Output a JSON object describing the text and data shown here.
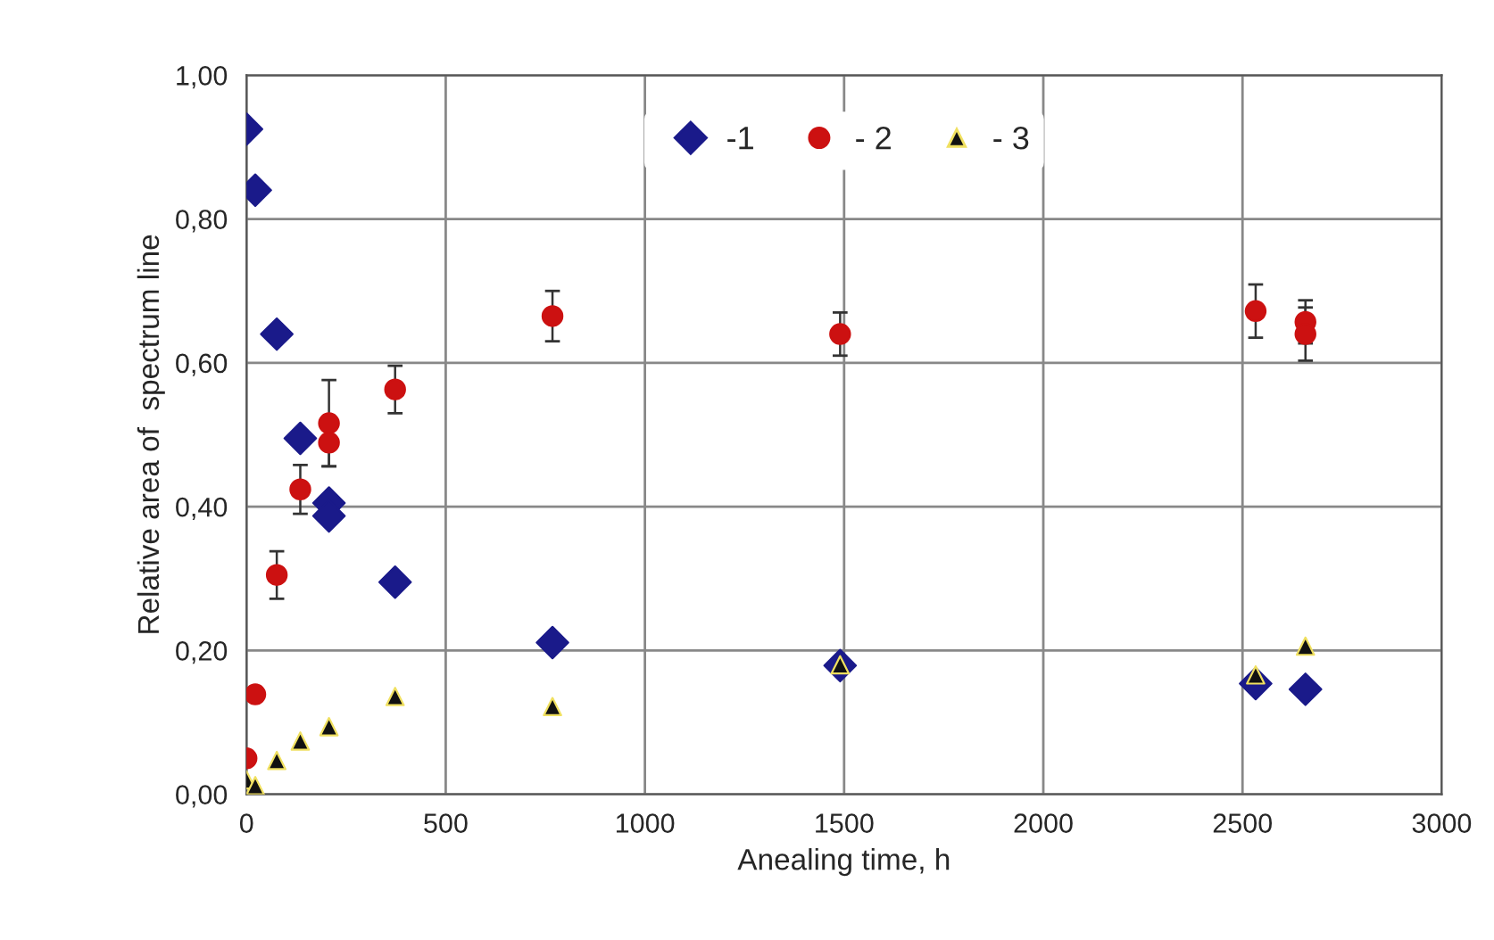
{
  "chart_data": {
    "type": "scatter",
    "xlabel": "Anealing time, h",
    "ylabel": "Relative area of  spectrum line",
    "xlim": [
      0,
      3000
    ],
    "xticks": [
      0,
      500,
      1000,
      1500,
      2000,
      2500,
      3000
    ],
    "ylim": [
      0,
      1
    ],
    "yticks": [
      {
        "value": 0,
        "label": "0,00"
      },
      {
        "value": 0.2,
        "label": "0,20"
      },
      {
        "value": 0.4,
        "label": "0,40"
      },
      {
        "value": 0.6,
        "label": "0,60"
      },
      {
        "value": 0.8,
        "label": "0,80"
      },
      {
        "value": 1,
        "label": "1,00"
      }
    ],
    "grid": true,
    "legend": "top",
    "series": [
      {
        "name": "-1",
        "color": "#1a1a8a",
        "marker": "diamond",
        "x": [
          0,
          22,
          76,
          135,
          207,
          207,
          373,
          768,
          1490,
          2533,
          2658
        ],
        "values": [
          0.925,
          0.84,
          0.64,
          0.495,
          0.405,
          0.387,
          0.295,
          0.211,
          0.179,
          0.154,
          0.146
        ]
      },
      {
        "name": "- 2",
        "color": "#cc1111",
        "marker": "circle",
        "x": [
          0,
          22,
          76,
          135,
          207,
          207,
          373,
          768,
          1490,
          2533,
          2658,
          2658
        ],
        "values": [
          0.05,
          0.139,
          0.305,
          0.424,
          0.516,
          0.489,
          0.563,
          0.665,
          0.64,
          0.672,
          0.657,
          0.64
        ],
        "errors": [
          null,
          null,
          0.033,
          0.034,
          0.06,
          0.033,
          0.033,
          0.035,
          0.03,
          0.037,
          0.03,
          0.037
        ]
      },
      {
        "name": "- 3",
        "color": "#111111",
        "marker": "triangle",
        "x": [
          0,
          22,
          76,
          135,
          207,
          373,
          768,
          1490,
          2533,
          2658
        ],
        "values": [
          0.02,
          0.012,
          0.047,
          0.074,
          0.094,
          0.136,
          0.122,
          0.18,
          0.166,
          0.206
        ]
      }
    ]
  }
}
